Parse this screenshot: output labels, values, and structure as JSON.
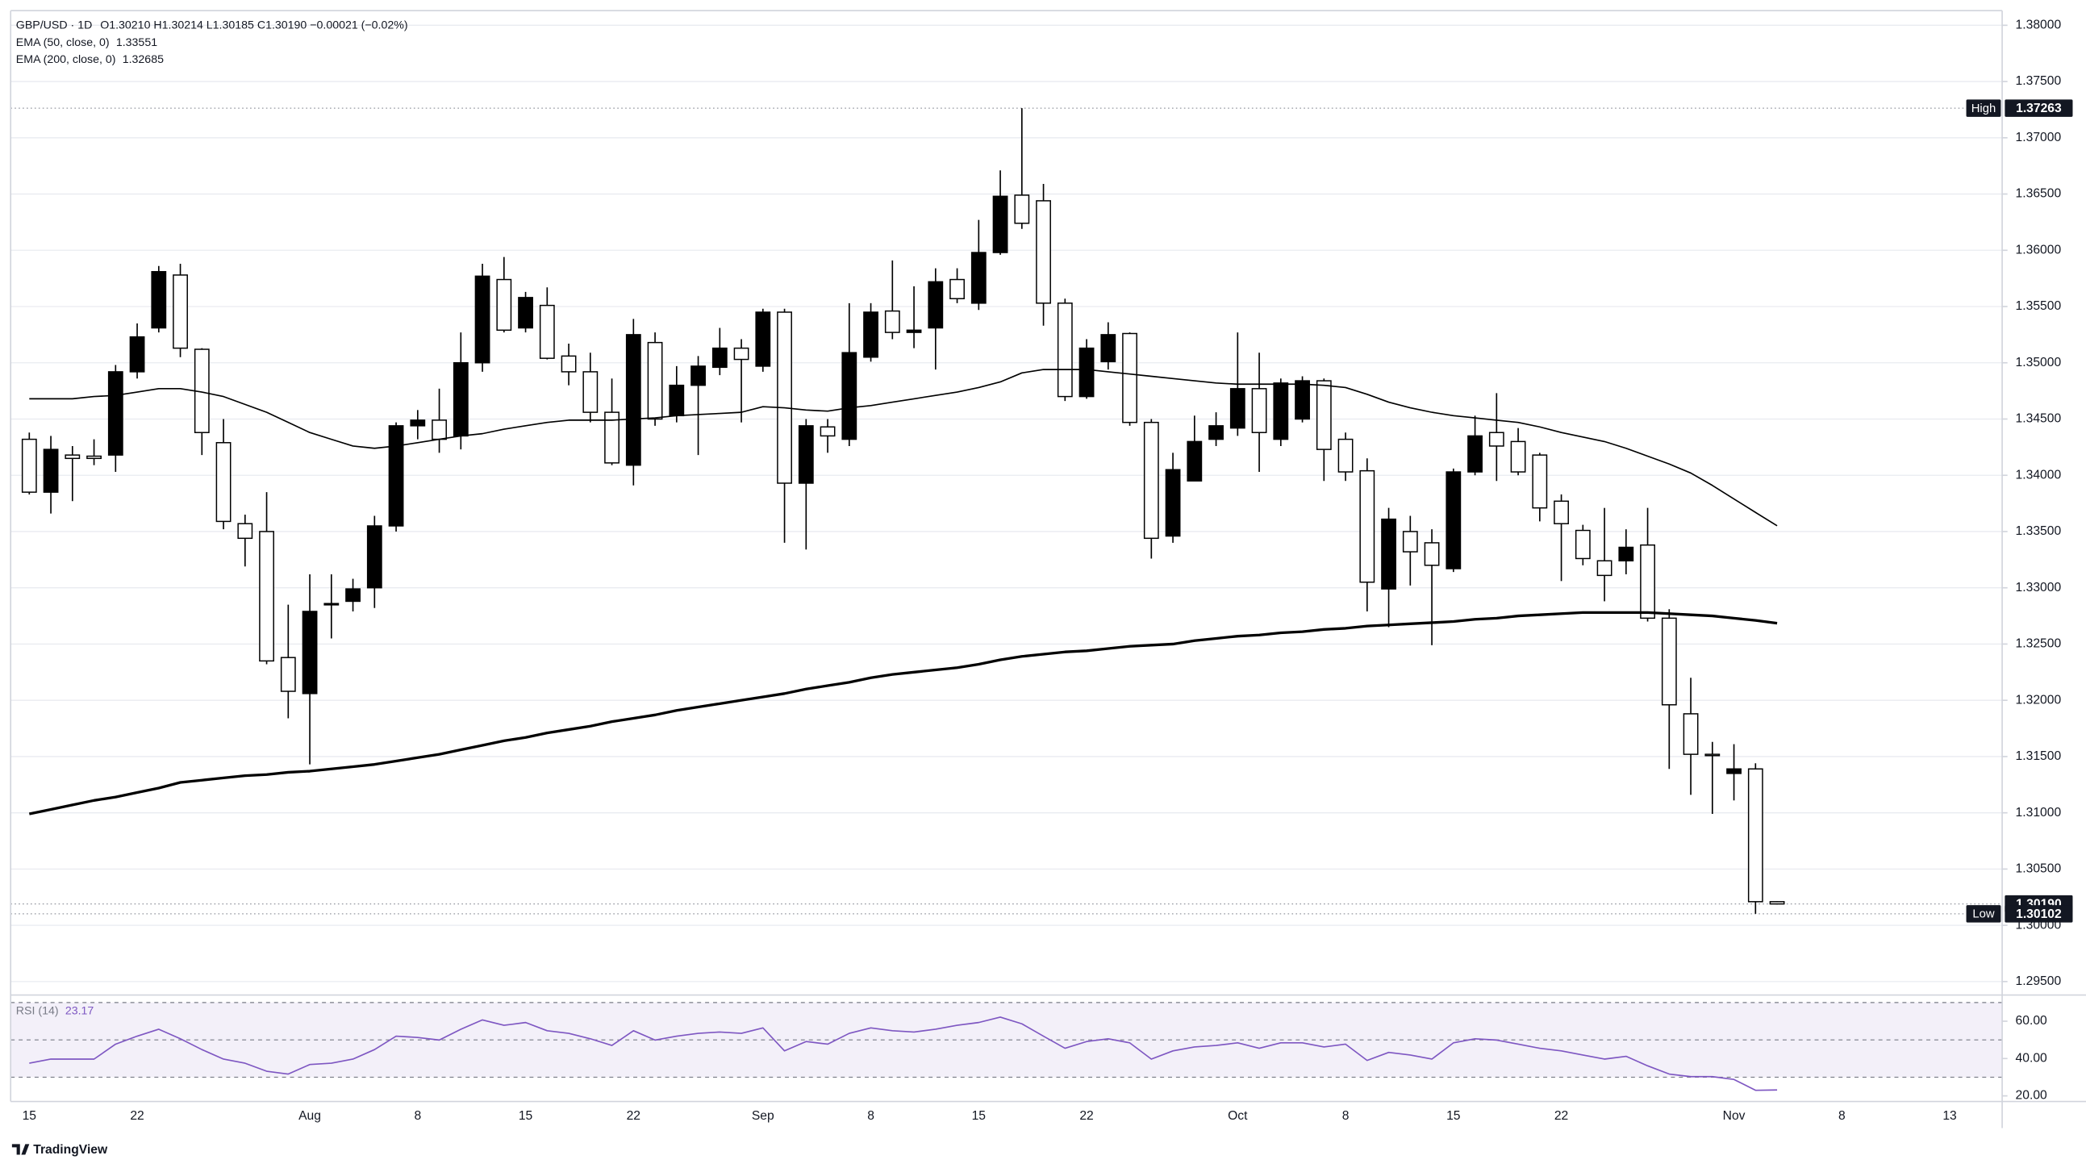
{
  "logo": "TradingView",
  "chart_data": [
    {
      "type": "candlestick",
      "symbol": "GBP/USD · 1D",
      "ohlc_label": "O1.30210 H1.30214 L1.30185 C1.30190 −0.00021 (−0.02%)",
      "categories": [
        "15",
        null,
        null,
        null,
        null,
        "22",
        null,
        null,
        null,
        null,
        null,
        null,
        null,
        "Aug",
        null,
        null,
        null,
        null,
        "8",
        null,
        null,
        null,
        null,
        "15",
        null,
        null,
        null,
        null,
        "22",
        null,
        null,
        null,
        null,
        null,
        "Sep",
        null,
        null,
        null,
        null,
        "8",
        null,
        null,
        null,
        null,
        "15",
        null,
        null,
        null,
        null,
        "22",
        null,
        null,
        null,
        null,
        null,
        null,
        "Oct",
        null,
        null,
        null,
        null,
        "8",
        null,
        null,
        null,
        null,
        "15",
        null,
        null,
        null,
        null,
        "22",
        null,
        null,
        null,
        null,
        null,
        null,
        null,
        "Nov",
        null,
        null,
        null,
        null,
        "8",
        null,
        null,
        null,
        null,
        "13"
      ],
      "open": [
        1.3432,
        1.3385,
        1.3418,
        1.3417,
        1.3418,
        1.3492,
        1.3531,
        1.3578,
        1.3512,
        1.3429,
        1.3357,
        1.335,
        1.3238,
        1.3206,
        1.3285,
        1.3288,
        1.33,
        1.3355,
        1.3444,
        1.3449,
        1.3435,
        1.35,
        1.3574,
        1.3531,
        1.3551,
        1.3506,
        1.3492,
        1.3456,
        1.3409,
        1.3518,
        1.3453,
        1.348,
        1.3496,
        1.3513,
        1.3497,
        1.3545,
        1.3393,
        1.3443,
        1.3432,
        1.3505,
        1.3546,
        1.3527,
        1.3531,
        1.3574,
        1.3553,
        1.3598,
        1.3649,
        1.3644,
        1.3553,
        1.347,
        1.3501,
        1.3526,
        1.3447,
        1.3346,
        1.3395,
        1.3432,
        1.3442,
        1.3477,
        1.3432,
        1.345,
        1.3484,
        1.3432,
        1.3404,
        1.3299,
        1.335,
        1.334,
        1.3317,
        1.3403,
        1.3438,
        1.343,
        1.3418,
        1.3377,
        1.3351,
        1.3324,
        1.3324,
        1.3338,
        1.3273,
        1.3188,
        1.3152,
        1.3135,
        1.3139,
        1.3021,
        null,
        null,
        null,
        null,
        null,
        null,
        null,
        null
      ],
      "high": [
        1.3438,
        1.3435,
        1.3426,
        1.3432,
        1.3498,
        1.3535,
        1.3586,
        1.3588,
        1.3513,
        1.345,
        1.3365,
        1.3385,
        1.3285,
        1.3312,
        1.3312,
        1.3308,
        1.3364,
        1.3447,
        1.3458,
        1.3477,
        1.3527,
        1.3588,
        1.3594,
        1.3563,
        1.3567,
        1.3517,
        1.3509,
        1.3486,
        1.3539,
        1.3527,
        1.3497,
        1.3506,
        1.3531,
        1.3521,
        1.3548,
        1.3548,
        1.345,
        1.345,
        1.3553,
        1.3553,
        1.3591,
        1.3568,
        1.3584,
        1.3584,
        1.3627,
        1.3671,
        1.37263,
        1.3659,
        1.3557,
        1.3521,
        1.3536,
        1.3527,
        1.345,
        1.342,
        1.3453,
        1.3456,
        1.3527,
        1.3509,
        1.3486,
        1.3488,
        1.3486,
        1.3438,
        1.3415,
        1.3371,
        1.3364,
        1.3352,
        1.3406,
        1.3453,
        1.3473,
        1.3442,
        1.342,
        1.3383,
        1.3356,
        1.3371,
        1.3352,
        1.3371,
        1.3281,
        1.322,
        1.3163,
        1.3161,
        1.3144,
        1.30214,
        null,
        null,
        null,
        null,
        null,
        null,
        null,
        null
      ],
      "low": [
        1.3383,
        1.3366,
        1.3377,
        1.3409,
        1.3403,
        1.3486,
        1.3527,
        1.3505,
        1.3418,
        1.3352,
        1.3319,
        1.3232,
        1.3184,
        1.3143,
        1.3255,
        1.3279,
        1.3282,
        1.335,
        1.3432,
        1.342,
        1.3423,
        1.3492,
        1.3527,
        1.3527,
        1.3503,
        1.348,
        1.3447,
        1.3409,
        1.3391,
        1.3444,
        1.3447,
        1.3418,
        1.3489,
        1.3447,
        1.3492,
        1.334,
        1.3334,
        1.342,
        1.3426,
        1.3501,
        1.3521,
        1.3513,
        1.3494,
        1.3553,
        1.3547,
        1.3596,
        1.3619,
        1.3533,
        1.3466,
        1.3468,
        1.3494,
        1.3444,
        1.3326,
        1.334,
        1.3395,
        1.3426,
        1.3435,
        1.3403,
        1.3426,
        1.3447,
        1.3395,
        1.3395,
        1.3279,
        1.3265,
        1.3302,
        1.3249,
        1.3314,
        1.34,
        1.3395,
        1.34,
        1.3359,
        1.3306,
        1.332,
        1.3288,
        1.3312,
        1.327,
        1.3139,
        1.3116,
        1.3099,
        1.3111,
        1.30102,
        1.30185,
        null,
        null,
        null,
        null,
        null,
        null,
        null,
        null
      ],
      "close": [
        1.3385,
        1.3423,
        1.3415,
        1.3415,
        1.3492,
        1.3523,
        1.3581,
        1.3513,
        1.3438,
        1.3359,
        1.3344,
        1.3235,
        1.3208,
        1.3279,
        1.3286,
        1.3299,
        1.3355,
        1.3444,
        1.3449,
        1.3432,
        1.35,
        1.3577,
        1.3529,
        1.3558,
        1.3504,
        1.3492,
        1.3456,
        1.3411,
        1.3525,
        1.345,
        1.348,
        1.3497,
        1.3513,
        1.3503,
        1.3545,
        1.3393,
        1.3444,
        1.3435,
        1.3509,
        1.3545,
        1.3527,
        1.3529,
        1.3572,
        1.3557,
        1.3598,
        1.3648,
        1.3624,
        1.3553,
        1.347,
        1.3513,
        1.3525,
        1.3447,
        1.3344,
        1.3405,
        1.343,
        1.3444,
        1.3477,
        1.3438,
        1.3482,
        1.3484,
        1.3423,
        1.3403,
        1.3305,
        1.3361,
        1.3332,
        1.332,
        1.3403,
        1.3435,
        1.3426,
        1.3403,
        1.3371,
        1.3357,
        1.3326,
        1.3311,
        1.3336,
        1.3273,
        1.3196,
        1.3152,
        1.3151,
        1.3139,
        1.3021,
        1.3019,
        null,
        null,
        null,
        null,
        null,
        null,
        null,
        null
      ],
      "up_color": "#000000",
      "down_color": "#ffffff",
      "wick_color": "#000000",
      "overlays": [
        {
          "name": "EMA (50, close, 0)",
          "value_label": "1.33551",
          "color": "#000000",
          "width": 1,
          "values": [
            1.3468,
            1.3468,
            1.3468,
            1.347,
            1.3471,
            1.3474,
            1.3477,
            1.3477,
            1.3474,
            1.347,
            1.3463,
            1.3456,
            1.3447,
            1.3438,
            1.3432,
            1.3426,
            1.3424,
            1.3426,
            1.3429,
            1.3432,
            1.3435,
            1.3437,
            1.3441,
            1.3444,
            1.3447,
            1.3449,
            1.3449,
            1.3449,
            1.345,
            1.3451,
            1.3453,
            1.3454,
            1.3455,
            1.3456,
            1.3461,
            1.346,
            1.3458,
            1.3457,
            1.346,
            1.3462,
            1.3465,
            1.3468,
            1.3471,
            1.3474,
            1.3478,
            1.3483,
            1.3491,
            1.3494,
            1.3494,
            1.3494,
            1.3492,
            1.349,
            1.3488,
            1.3486,
            1.3484,
            1.3482,
            1.3481,
            1.3481,
            1.3481,
            1.3481,
            1.348,
            1.3478,
            1.3472,
            1.3465,
            1.346,
            1.3456,
            1.3453,
            1.3451,
            1.3449,
            1.3447,
            1.3443,
            1.3438,
            1.3434,
            1.343,
            1.3424,
            1.3417,
            1.341,
            1.3402,
            1.3391,
            1.3379,
            1.3367,
            1.33551,
            null,
            null,
            null,
            null,
            null,
            null,
            null,
            null
          ]
        },
        {
          "name": "EMA (200, close, 0)",
          "value_label": "1.32685",
          "color": "#000000",
          "width": 2,
          "values": [
            1.3099,
            1.3103,
            1.3107,
            1.3111,
            1.3114,
            1.3118,
            1.3122,
            1.3127,
            1.3129,
            1.3131,
            1.3133,
            1.3134,
            1.3136,
            1.3137,
            1.3139,
            1.3141,
            1.3143,
            1.3146,
            1.3149,
            1.3152,
            1.3156,
            1.316,
            1.3164,
            1.3167,
            1.3171,
            1.3174,
            1.3177,
            1.3181,
            1.3184,
            1.3187,
            1.3191,
            1.3194,
            1.3197,
            1.32,
            1.3203,
            1.3206,
            1.321,
            1.3213,
            1.3216,
            1.322,
            1.3223,
            1.3225,
            1.3227,
            1.3229,
            1.3232,
            1.3236,
            1.3239,
            1.3241,
            1.3243,
            1.3244,
            1.3246,
            1.3248,
            1.3249,
            1.325,
            1.3253,
            1.3255,
            1.3257,
            1.3258,
            1.326,
            1.3261,
            1.3263,
            1.3264,
            1.3266,
            1.3267,
            1.3268,
            1.3269,
            1.327,
            1.3272,
            1.3273,
            1.3275,
            1.3276,
            1.3277,
            1.3278,
            1.3278,
            1.3278,
            1.3278,
            1.3277,
            1.3276,
            1.3275,
            1.3273,
            1.3271,
            1.32685,
            null,
            null,
            null,
            null,
            null,
            null,
            null,
            null
          ]
        }
      ],
      "reference_lines": [
        {
          "label": "High",
          "value": 1.37263,
          "value_label": "1.37263"
        },
        {
          "value": 1.3019,
          "value_label": "1.30190"
        },
        {
          "label": "Low",
          "value": 1.30102,
          "value_label": "1.30102"
        }
      ],
      "ylim": [
        1.2938,
        1.3813
      ],
      "yticks": [
        {
          "value": 1.295,
          "label": "1.29500"
        },
        {
          "value": 1.3,
          "label": "1.30000"
        },
        {
          "value": 1.305,
          "label": "1.30500"
        },
        {
          "value": 1.31,
          "label": "1.31000"
        },
        {
          "value": 1.315,
          "label": "1.31500"
        },
        {
          "value": 1.32,
          "label": "1.32000"
        },
        {
          "value": 1.325,
          "label": "1.32500"
        },
        {
          "value": 1.33,
          "label": "1.33000"
        },
        {
          "value": 1.335,
          "label": "1.33500"
        },
        {
          "value": 1.34,
          "label": "1.34000"
        },
        {
          "value": 1.345,
          "label": "1.34500"
        },
        {
          "value": 1.35,
          "label": "1.35000"
        },
        {
          "value": 1.355,
          "label": "1.35500"
        },
        {
          "value": 1.36,
          "label": "1.36000"
        },
        {
          "value": 1.365,
          "label": "1.36500"
        },
        {
          "value": 1.37,
          "label": "1.37000"
        },
        {
          "value": 1.375,
          "label": "1.37500"
        },
        {
          "value": 1.38,
          "label": "1.38000"
        }
      ],
      "grid": true
    },
    {
      "type": "line",
      "series": [
        {
          "name": "RSI (14)",
          "value_label": "23.17",
          "color": "#7e57c2",
          "values": [
            37.5,
            39.7,
            39.7,
            39.7,
            47.7,
            52.0,
            55.7,
            50.6,
            44.8,
            39.7,
            37.5,
            33.2,
            31.7,
            36.8,
            37.5,
            39.7,
            44.8,
            52.0,
            51.3,
            49.9,
            55.7,
            60.7,
            57.8,
            59.3,
            54.9,
            53.5,
            50.6,
            47.0,
            54.9,
            49.9,
            52.0,
            53.5,
            54.2,
            53.5,
            56.4,
            44.1,
            49.1,
            47.7,
            53.5,
            56.4,
            54.9,
            54.2,
            55.7,
            57.8,
            59.3,
            62.2,
            58.6,
            52.0,
            45.5,
            49.1,
            50.6,
            48.4,
            39.7,
            44.1,
            46.2,
            47.0,
            48.4,
            45.5,
            48.4,
            48.4,
            46.2,
            47.7,
            39.0,
            43.3,
            41.9,
            39.7,
            48.4,
            50.6,
            49.9,
            47.7,
            45.5,
            44.1,
            41.9,
            39.7,
            41.2,
            36.1,
            31.7,
            30.3,
            30.3,
            28.8,
            23.0,
            23.17,
            null,
            null,
            null,
            null,
            null,
            null,
            null,
            null
          ]
        }
      ],
      "levels": [
        30,
        50,
        70
      ],
      "band_color": "#7e57c2",
      "ylim": [
        17,
        74
      ],
      "yticks": [
        {
          "value": 20,
          "label": "20.00"
        },
        {
          "value": 40,
          "label": "40.00"
        },
        {
          "value": 60,
          "label": "60.00"
        }
      ],
      "grid": false
    }
  ]
}
